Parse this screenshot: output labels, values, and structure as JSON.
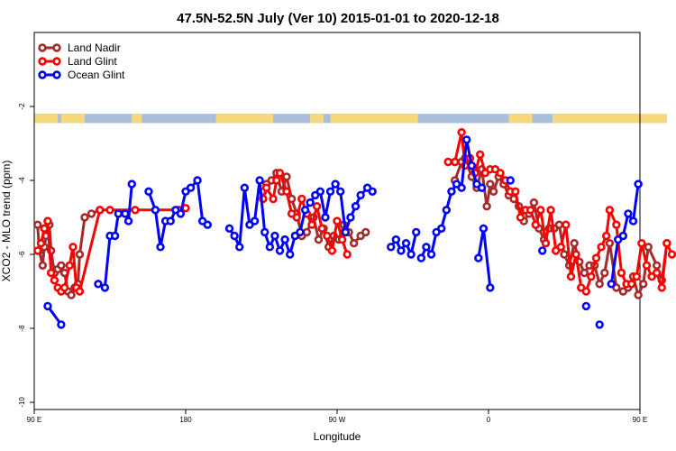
{
  "chart_data": {
    "type": "line",
    "title": "47.5N-52.5N July (Ver 10)   2015-01-01 to 2020-12-18",
    "xlabel": "Longitude",
    "ylabel": "XCO2 - MLO trend (ppm)",
    "xlim": [
      90,
      450
    ],
    "ylim": [
      -10,
      0
    ],
    "x_ticks": [
      {
        "value": 90,
        "label": "90 E"
      },
      {
        "value": 180,
        "label": "180"
      },
      {
        "value": 270,
        "label": "90 W"
      },
      {
        "value": 360,
        "label": "0"
      },
      {
        "value": 450,
        "label": "90 E"
      },
      {
        "value": 540,
        "label": "180"
      }
    ],
    "y_ticks": [
      -2,
      -4,
      -6,
      -8,
      -10
    ],
    "legend_position": "top-left",
    "grid": false,
    "land_ocean_band": {
      "y_top": -2.2,
      "y_bottom": -2.45,
      "land_color": "#f5d77e",
      "ocean_color": "#a7bfdd"
    },
    "series": [
      {
        "name": "Land Nadir",
        "color": "#a52a2a",
        "segments": [
          [
            [
              92,
              -5.2
            ],
            [
              93,
              -5.9
            ],
            [
              95,
              -6.3
            ],
            [
              96,
              -5.8
            ],
            [
              97,
              -5.5
            ],
            [
              99,
              -5.2
            ],
            [
              100,
              -5.9
            ],
            [
              102,
              -6.5
            ],
            [
              104,
              -6.4
            ],
            [
              106,
              -6.3
            ],
            [
              108,
              -6.5
            ],
            [
              110,
              -7.0
            ],
            [
              112,
              -7.1
            ],
            [
              114,
              -6.9
            ],
            [
              116,
              -6.8
            ],
            [
              117,
              -6.0
            ],
            [
              120,
              -5.0
            ],
            [
              124,
              -4.9
            ],
            [
              129,
              -4.8
            ]
          ],
          [
            [
              226,
              -4.3
            ],
            [
              228,
              -4.1
            ],
            [
              231,
              -4.0
            ],
            [
              234,
              -3.8
            ],
            [
              237,
              -4.3
            ],
            [
              240,
              -3.9
            ],
            [
              243,
              -4.5
            ],
            [
              246,
              -4.9
            ],
            [
              249,
              -5.5
            ],
            [
              252,
              -5.4
            ],
            [
              256,
              -5.0
            ],
            [
              259,
              -5.6
            ],
            [
              262,
              -5.3
            ],
            [
              265,
              -5.8
            ],
            [
              268,
              -5.5
            ],
            [
              271,
              -5.6
            ],
            [
              274,
              -5.2
            ],
            [
              277,
              -5.4
            ],
            [
              280,
              -5.7
            ],
            [
              284,
              -5.5
            ],
            [
              287,
              -5.4
            ]
          ],
          [
            [
              340,
              -4.0
            ],
            [
              344,
              -3.5
            ],
            [
              346,
              -3.4
            ],
            [
              350,
              -3.9
            ],
            [
              353,
              -4.2
            ],
            [
              356,
              -3.7
            ],
            [
              359,
              -4.7
            ],
            [
              361,
              -4.1
            ],
            [
              363,
              -4.3
            ],
            [
              366,
              -3.9
            ],
            [
              369,
              -4.1
            ],
            [
              372,
              -4.4
            ],
            [
              375,
              -4.5
            ],
            [
              378,
              -4.7
            ],
            [
              381,
              -5.1
            ],
            [
              384,
              -4.9
            ],
            [
              387,
              -4.6
            ],
            [
              390,
              -5.3
            ],
            [
              393,
              -5.6
            ],
            [
              396,
              -5.3
            ],
            [
              399,
              -5.3
            ],
            [
              402,
              -5.2
            ],
            [
              405,
              -6.0
            ],
            [
              408,
              -6.3
            ],
            [
              411,
              -5.7
            ],
            [
              414,
              -6.2
            ],
            [
              417,
              -6.5
            ],
            [
              420,
              -6.3
            ],
            [
              423,
              -6.3
            ],
            [
              426,
              -6.8
            ],
            [
              429,
              -6.5
            ],
            [
              432,
              -5.7
            ],
            [
              436,
              -6.9
            ],
            [
              440,
              -7.0
            ],
            [
              443,
              -6.9
            ],
            [
              446,
              -6.6
            ],
            [
              449,
              -7.1
            ],
            [
              452,
              -6.8
            ],
            [
              455,
              -5.8
            ],
            [
              460,
              -6.3
            ],
            [
              463,
              -6.7
            ],
            [
              466,
              -5.7
            ]
          ]
        ]
      },
      {
        "name": "Land Glint",
        "color": "#ff0000",
        "segments": [
          [
            [
              92,
              -5.9
            ],
            [
              94,
              -5.7
            ],
            [
              96,
              -5.3
            ],
            [
              98,
              -5.1
            ],
            [
              100,
              -6.5
            ],
            [
              102,
              -6.7
            ],
            [
              104,
              -6.9
            ],
            [
              106,
              -7.0
            ],
            [
              108,
              -6.9
            ],
            [
              111,
              -6.3
            ],
            [
              113,
              -5.8
            ],
            [
              115,
              -6.9
            ],
            [
              117,
              -7.0
            ],
            [
              129,
              -4.8
            ],
            [
              135,
              -4.8
            ],
            [
              150,
              -4.8
            ],
            [
              176,
              -4.8
            ],
            [
              180,
              -4.75
            ]
          ],
          [
            [
              226,
              -4.5
            ],
            [
              228,
              -4.2
            ],
            [
              232,
              -4.5
            ],
            [
              234,
              -4.0
            ],
            [
              236,
              -3.8
            ],
            [
              240,
              -4.3
            ],
            [
              243,
              -4.9
            ],
            [
              246,
              -5.0
            ],
            [
              249,
              -4.5
            ],
            [
              252,
              -4.9
            ],
            [
              255,
              -5.2
            ],
            [
              258,
              -4.7
            ],
            [
              261,
              -5.3
            ],
            [
              264,
              -5.5
            ],
            [
              267,
              -5.9
            ],
            [
              270,
              -5.1
            ],
            [
              273,
              -5.6
            ],
            [
              276,
              -6.0
            ]
          ],
          [
            [
              336,
              -3.5
            ],
            [
              340,
              -3.5
            ],
            [
              344,
              -2.7
            ],
            [
              346,
              -3.6
            ],
            [
              349,
              -3.4
            ],
            [
              352,
              -3.8
            ],
            [
              355,
              -3.3
            ],
            [
              358,
              -3.8
            ],
            [
              361,
              -3.7
            ],
            [
              364,
              -3.7
            ],
            [
              367,
              -3.8
            ],
            [
              370,
              -4.0
            ],
            [
              373,
              -4.3
            ],
            [
              376,
              -4.3
            ],
            [
              379,
              -5.0
            ],
            [
              382,
              -4.8
            ],
            [
              385,
              -4.8
            ],
            [
              388,
              -5.2
            ],
            [
              391,
              -4.8
            ],
            [
              394,
              -5.7
            ],
            [
              397,
              -4.8
            ],
            [
              400,
              -5.9
            ],
            [
              403,
              -5.8
            ],
            [
              406,
              -5.2
            ],
            [
              409,
              -6.6
            ],
            [
              412,
              -6.0
            ],
            [
              415,
              -6.9
            ],
            [
              418,
              -7.0
            ],
            [
              421,
              -6.6
            ],
            [
              424,
              -6.1
            ],
            [
              427,
              -5.8
            ],
            [
              430,
              -5.5
            ],
            [
              432,
              -4.8
            ],
            [
              436,
              -5.2
            ],
            [
              439,
              -6.5
            ],
            [
              442,
              -6.8
            ],
            [
              445,
              -6.8
            ],
            [
              448,
              -6.6
            ],
            [
              451,
              -5.7
            ],
            [
              454,
              -6.3
            ],
            [
              457,
              -6.6
            ],
            [
              460,
              -6.5
            ],
            [
              463,
              -6.9
            ],
            [
              466,
              -5.7
            ],
            [
              469,
              -6.0
            ]
          ]
        ]
      },
      {
        "name": "Ocean Glint",
        "color": "#0000ff",
        "segments": [
          [
            [
              98,
              -7.4
            ],
            [
              106,
              -7.9
            ]
          ],
          [
            [
              128,
              -6.8
            ],
            [
              132,
              -6.9
            ],
            [
              135,
              -5.5
            ],
            [
              138,
              -5.5
            ],
            [
              140,
              -4.9
            ],
            [
              144,
              -4.9
            ],
            [
              146,
              -5.1
            ],
            [
              148,
              -4.1
            ]
          ],
          [
            [
              158,
              -4.3
            ],
            [
              162,
              -4.8
            ],
            [
              165,
              -5.8
            ],
            [
              168,
              -5.1
            ],
            [
              171,
              -5.1
            ],
            [
              174,
              -4.8
            ],
            [
              177,
              -4.9
            ],
            [
              180,
              -4.3
            ],
            [
              183,
              -4.2
            ],
            [
              187,
              -4.0
            ],
            [
              190,
              -5.1
            ],
            [
              193,
              -5.2
            ]
          ],
          [
            [
              206,
              -5.3
            ],
            [
              209,
              -5.5
            ],
            [
              212,
              -5.8
            ],
            [
              215,
              -4.2
            ],
            [
              218,
              -5.2
            ],
            [
              221,
              -5.1
            ],
            [
              224,
              -4.0
            ],
            [
              227,
              -5.4
            ],
            [
              230,
              -5.8
            ],
            [
              233,
              -5.5
            ],
            [
              236,
              -5.9
            ],
            [
              239,
              -5.6
            ],
            [
              242,
              -6.0
            ],
            [
              245,
              -5.5
            ],
            [
              248,
              -5.4
            ],
            [
              251,
              -4.8
            ],
            [
              254,
              -4.6
            ],
            [
              257,
              -4.4
            ],
            [
              260,
              -4.3
            ],
            [
              263,
              -5.0
            ],
            [
              266,
              -4.3
            ],
            [
              269,
              -4.1
            ],
            [
              272,
              -4.3
            ],
            [
              275,
              -5.4
            ],
            [
              278,
              -5.0
            ],
            [
              281,
              -4.7
            ],
            [
              284,
              -4.4
            ],
            [
              288,
              -4.2
            ],
            [
              291,
              -4.3
            ]
          ],
          [
            [
              302,
              -5.8
            ],
            [
              305,
              -5.6
            ],
            [
              308,
              -5.9
            ],
            [
              311,
              -5.7
            ],
            [
              314,
              -6.0
            ],
            [
              317,
              -5.4
            ]
          ],
          [
            [
              354,
              -6.1
            ],
            [
              357,
              -5.3
            ],
            [
              361,
              -6.9
            ]
          ],
          [
            [
              320,
              -6.1
            ],
            [
              323,
              -5.8
            ],
            [
              326,
              -6.0
            ],
            [
              329,
              -5.4
            ],
            [
              332,
              -5.3
            ],
            [
              335,
              -4.8
            ],
            [
              338,
              -4.3
            ],
            [
              341,
              -4.1
            ],
            [
              344,
              -4.2
            ],
            [
              347,
              -2.9
            ],
            [
              350,
              -3.6
            ],
            [
              353,
              -4.1
            ],
            [
              356,
              -4.2
            ]
          ],
          [
            [
              373,
              -4.0
            ]
          ],
          [
            [
              392,
              -5.9
            ]
          ],
          [
            [
              418,
              -7.4
            ]
          ],
          [
            [
              426,
              -7.9
            ]
          ],
          [
            [
              433,
              -6.8
            ],
            [
              437,
              -5.6
            ],
            [
              440,
              -5.5
            ],
            [
              443,
              -4.9
            ],
            [
              446,
              -5.1
            ],
            [
              449,
              -4.1
            ]
          ]
        ]
      }
    ]
  }
}
